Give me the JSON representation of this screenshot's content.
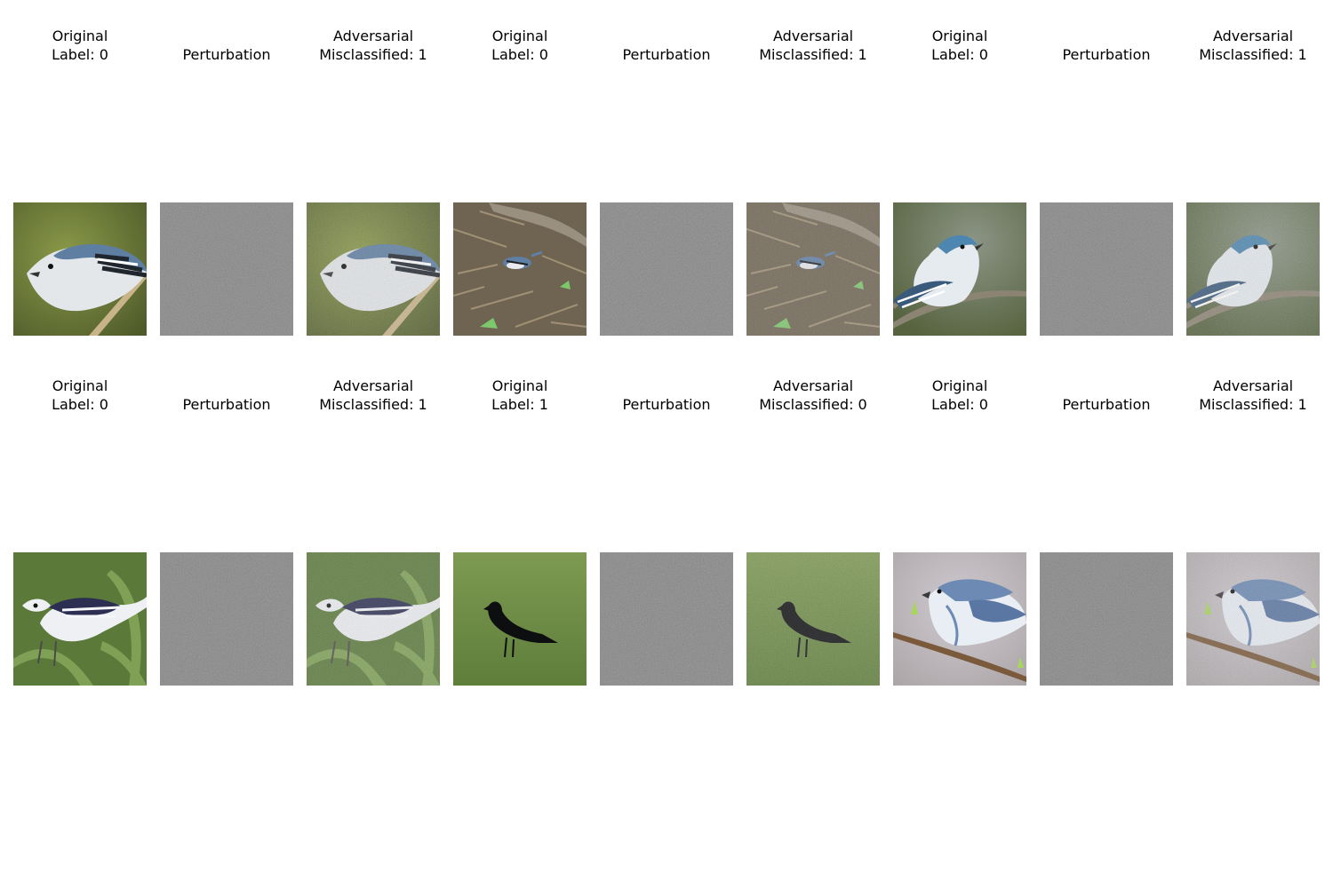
{
  "grid": {
    "rows": [
      {
        "panels": [
          {
            "kind": "original",
            "lines": [
              "Original",
              "Label: 0"
            ],
            "scene": "warbler-branch"
          },
          {
            "kind": "perturbation",
            "lines": [
              "Perturbation"
            ]
          },
          {
            "kind": "adversarial",
            "lines": [
              "Adversarial",
              "Misclassified: 1"
            ],
            "scene": "warbler-branch"
          },
          {
            "kind": "original",
            "lines": [
              "Original",
              "Label: 0"
            ],
            "scene": "warbler-ground"
          },
          {
            "kind": "perturbation",
            "lines": [
              "Perturbation"
            ]
          },
          {
            "kind": "adversarial",
            "lines": [
              "Adversarial",
              "Misclassified: 1"
            ],
            "scene": "warbler-ground"
          },
          {
            "kind": "original",
            "lines": [
              "Original",
              "Label: 0"
            ],
            "scene": "warbler-perch"
          },
          {
            "kind": "perturbation",
            "lines": [
              "Perturbation"
            ]
          },
          {
            "kind": "adversarial",
            "lines": [
              "Adversarial",
              "Misclassified: 1"
            ],
            "scene": "warbler-perch"
          }
        ]
      },
      {
        "panels": [
          {
            "kind": "original",
            "lines": [
              "Original",
              "Label: 0"
            ],
            "scene": "warbler-leaves"
          },
          {
            "kind": "perturbation",
            "lines": [
              "Perturbation"
            ]
          },
          {
            "kind": "adversarial",
            "lines": [
              "Adversarial",
              "Misclassified: 1"
            ],
            "scene": "warbler-leaves"
          },
          {
            "kind": "original",
            "lines": [
              "Original",
              "Label: 1"
            ],
            "scene": "crow-grass"
          },
          {
            "kind": "perturbation",
            "lines": [
              "Perturbation"
            ]
          },
          {
            "kind": "adversarial",
            "lines": [
              "Adversarial",
              "Misclassified: 0"
            ],
            "scene": "crow-grass"
          },
          {
            "kind": "original",
            "lines": [
              "Original",
              "Label: 0"
            ],
            "scene": "warbler-buds"
          },
          {
            "kind": "perturbation",
            "lines": [
              "Perturbation"
            ]
          },
          {
            "kind": "adversarial",
            "lines": [
              "Adversarial",
              "Misclassified: 1"
            ],
            "scene": "warbler-buds"
          }
        ]
      }
    ]
  },
  "colors": {
    "perturbation_gray": "#808080",
    "text": "#000000"
  }
}
